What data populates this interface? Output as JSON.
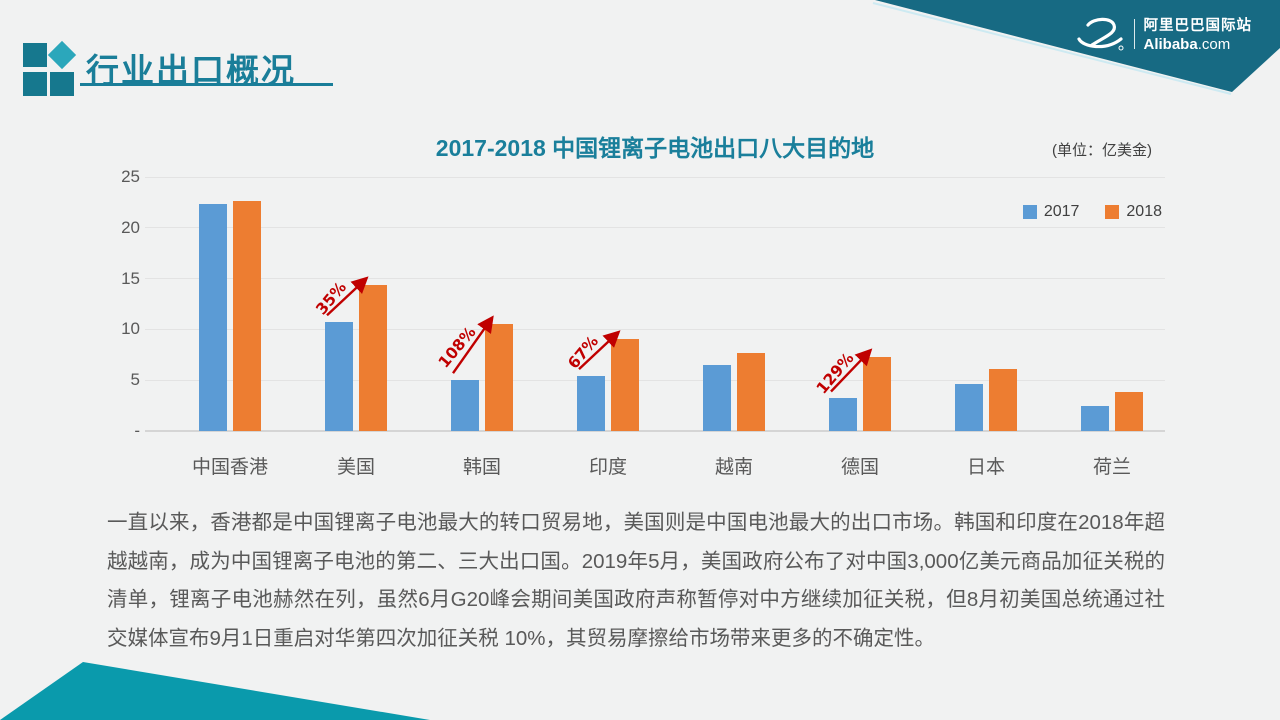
{
  "header": {
    "title": "行业出口概况"
  },
  "brand": {
    "cn": "阿里巴巴国际站",
    "en_bold": "Alibaba",
    "en_rest": ".com",
    "reg": "®"
  },
  "chart_header": {
    "title": "2017-2018 中国锂离子电池出口八大目的地",
    "unit": "(单位：亿美金)"
  },
  "chart_data": {
    "type": "bar",
    "title": "2017-2018 中国锂离子电池出口八大目的地",
    "unit": "亿美金",
    "categories": [
      "中国香港",
      "美国",
      "韩国",
      "印度",
      "越南",
      "德国",
      "日本",
      "荷兰"
    ],
    "series": [
      {
        "name": "2017",
        "color": "#5b9bd5",
        "values": [
          22.3,
          10.7,
          5.0,
          5.4,
          6.5,
          3.2,
          4.6,
          2.5
        ]
      },
      {
        "name": "2018",
        "color": "#ed7d31",
        "values": [
          22.6,
          14.4,
          10.5,
          9.1,
          7.7,
          7.3,
          6.1,
          3.8
        ]
      }
    ],
    "growth_labels": [
      {
        "category": "美国",
        "label": "35%"
      },
      {
        "category": "韩国",
        "label": "108%"
      },
      {
        "category": "印度",
        "label": "67%"
      },
      {
        "category": "德国",
        "label": "129%"
      }
    ],
    "y_ticks": [
      {
        "value": 25,
        "label": "25"
      },
      {
        "value": 20,
        "label": "20"
      },
      {
        "value": 15,
        "label": "15"
      },
      {
        "value": 10,
        "label": "10"
      },
      {
        "value": 5,
        "label": "5"
      },
      {
        "value": 0,
        "label": "-"
      }
    ],
    "ylim": [
      0,
      25
    ],
    "grid": true,
    "legend_position": "top-right",
    "annotation_color": "#c00000"
  },
  "body": {
    "text": "一直以来，香港都是中国锂离子电池最大的转口贸易地，美国则是中国电池最大的出口市场。韩国和印度在2018年超越越南，成为中国锂离子电池的第二、三大出口国。2019年5月，美国政府公布了对中国3,000亿美元商品加征关税的清单，锂离子电池赫然在列，虽然6月G20峰会期间美国政府声称暂停对中方继续加征关税，但8月初美国总统通过社交媒体宣布9月1日重启对华第四次加征关税 10%，其贸易摩擦给市场带来更多的不确定性。"
  },
  "colors": {
    "banner_top": "#176a83",
    "banner_bottom": "#0a9aac",
    "title_teal": "#1a7e99",
    "bar_blue": "#5b9bd5",
    "bar_orange": "#ed7d31",
    "annotation_red": "#c00000",
    "text_gray": "#595959"
  }
}
